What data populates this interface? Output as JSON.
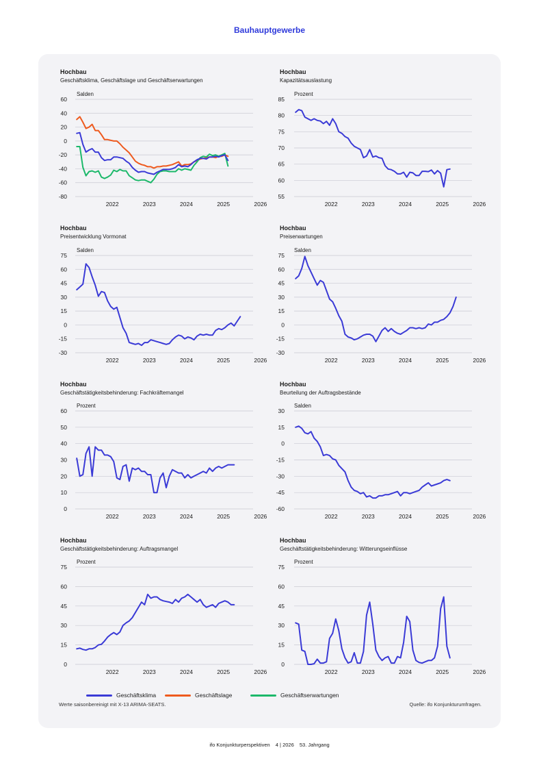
{
  "page": {
    "heading": "Bauhauptgewerbe",
    "note": "Werte saisonbereinigt mit X-13 ARIMA-SEATS.",
    "source": "Quelle: ifo Konjunkturumfragen.",
    "footer": {
      "publication": "ifo Konjunkturperspektiven",
      "issue": "4 | 2026",
      "volume": "53. Jahrgang"
    }
  },
  "colors": {
    "klima": "#3a3ad6",
    "lage": "#ee5a1e",
    "erwartungen": "#1cb86a",
    "grid": "#c9c9d2",
    "accent": "#2f3adb"
  },
  "legend": [
    {
      "label": "Geschäftsklima",
      "color": "#3a3ad6"
    },
    {
      "label": "Geschäftslage",
      "color": "#ee5a1e"
    },
    {
      "label": "Geschäftserwartungen",
      "color": "#1cb86a"
    }
  ],
  "chart_data": [
    {
      "type": "line",
      "title": "Hochbau",
      "subtitle": "Geschäftsklima, Geschäftslage und Geschäftserwartungen",
      "unit": "Salden",
      "ylim": [
        -80,
        60
      ],
      "yticks": [
        60,
        40,
        20,
        0,
        -20,
        -40,
        -60,
        -80
      ],
      "xlim": [
        2021.5,
        2026.3
      ],
      "xticks": [
        "2022",
        "2023",
        "2024",
        "2025",
        "2026"
      ],
      "x_start": 2021.54,
      "x_step": 0.0833,
      "series": [
        {
          "name": "Geschäftsklima",
          "color": "#3a3ad6",
          "values": [
            11,
            12,
            -5,
            -16,
            -13,
            -11,
            -16,
            -16,
            -24,
            -28,
            -27,
            -27,
            -23,
            -23,
            -24,
            -25,
            -29,
            -32,
            -38,
            -42,
            -45,
            -44,
            -44,
            -46,
            -47,
            -48,
            -45,
            -43,
            -41,
            -41,
            -41,
            -40,
            -38,
            -34,
            -37,
            -36,
            -37,
            -34,
            -30,
            -27,
            -25,
            -25,
            -26,
            -23,
            -23,
            -22,
            -23,
            -21,
            -20,
            -28
          ]
        },
        {
          "name": "Geschäftslage",
          "color": "#ee5a1e",
          "values": [
            31,
            35,
            27,
            18,
            20,
            24,
            15,
            15,
            9,
            2,
            2,
            1,
            0,
            0,
            -4,
            -9,
            -13,
            -17,
            -23,
            -29,
            -32,
            -34,
            -35,
            -37,
            -37,
            -39,
            -37,
            -37,
            -36,
            -36,
            -35,
            -34,
            -32,
            -30,
            -36,
            -34,
            -34,
            -33,
            -30,
            -28,
            -26,
            -25,
            -24,
            -23,
            -23,
            -24,
            -22,
            -22,
            -20,
            -22
          ]
        },
        {
          "name": "Geschäftserwartungen",
          "color": "#1cb86a",
          "values": [
            -8,
            -8,
            -38,
            -50,
            -44,
            -43,
            -45,
            -43,
            -52,
            -54,
            -52,
            -49,
            -42,
            -44,
            -41,
            -43,
            -43,
            -50,
            -53,
            -56,
            -57,
            -56,
            -56,
            -58,
            -60,
            -55,
            -48,
            -44,
            -43,
            -43,
            -44,
            -44,
            -44,
            -40,
            -42,
            -40,
            -41,
            -42,
            -35,
            -30,
            -24,
            -22,
            -23,
            -19,
            -21,
            -20,
            -22,
            -20,
            -18,
            -36
          ]
        }
      ]
    },
    {
      "type": "line",
      "title": "Hochbau",
      "subtitle": "Kapazitätsauslastung",
      "unit": "Prozent",
      "ylim": [
        55,
        85
      ],
      "yticks": [
        85,
        80,
        75,
        70,
        65,
        60,
        55
      ],
      "xlim": [
        2021.5,
        2026.3
      ],
      "xticks": [
        "2022",
        "2023",
        "2024",
        "2025",
        "2026"
      ],
      "x_start": 2021.54,
      "x_step": 0.0833,
      "series": [
        {
          "name": "Geschäftsklima",
          "color": "#3a3ad6",
          "values": [
            81,
            81.8,
            81.5,
            79.5,
            79,
            78.5,
            79,
            78.5,
            78.3,
            77.5,
            78.2,
            77,
            79,
            77.5,
            75,
            74.5,
            73.5,
            73,
            71.5,
            70.5,
            70,
            69.5,
            67,
            67.5,
            69.5,
            67.2,
            67.5,
            67,
            66.8,
            64.5,
            63.5,
            63.3,
            62.8,
            62,
            62,
            62.5,
            61,
            62.5,
            62.3,
            61.5,
            61.5,
            62.8,
            62.8,
            62.7,
            63.2,
            62,
            63,
            62.2,
            58,
            63.3,
            63.5
          ]
        }
      ]
    },
    {
      "type": "line",
      "title": "Hochbau",
      "subtitle": "Preisentwicklung Vormonat",
      "unit": "Salden",
      "ylim": [
        -30,
        75
      ],
      "yticks": [
        75,
        60,
        45,
        30,
        15,
        0,
        -15,
        -30
      ],
      "xlim": [
        2021.5,
        2026.3
      ],
      "xticks": [
        "2022",
        "2023",
        "2024",
        "2025",
        "2026"
      ],
      "x_start": 2021.54,
      "x_step": 0.0833,
      "series": [
        {
          "name": "Geschäftsklima",
          "color": "#3a3ad6",
          "values": [
            38,
            41,
            44,
            66,
            62,
            52,
            43,
            31,
            36,
            35,
            26,
            20,
            17,
            19,
            8,
            -3,
            -9,
            -19,
            -20,
            -21,
            -20,
            -22,
            -19,
            -19,
            -16,
            -17,
            -18,
            -19,
            -20,
            -21,
            -20,
            -16,
            -13,
            -11,
            -12,
            -15,
            -13,
            -14,
            -16,
            -12,
            -10,
            -11,
            -10,
            -11,
            -11,
            -6,
            -4,
            -5,
            -3,
            0,
            2,
            -1,
            4,
            9
          ]
        }
      ]
    },
    {
      "type": "line",
      "title": "Hochbau",
      "subtitle": "Preiserwartungen",
      "unit": "Salden",
      "ylim": [
        -30,
        75
      ],
      "yticks": [
        75,
        60,
        45,
        30,
        15,
        0,
        -15,
        -30
      ],
      "xlim": [
        2021.5,
        2026.3
      ],
      "xticks": [
        "2022",
        "2023",
        "2024",
        "2025",
        "2026"
      ],
      "x_start": 2021.54,
      "x_step": 0.0833,
      "series": [
        {
          "name": "Geschäftsklima",
          "color": "#3a3ad6",
          "values": [
            50,
            53,
            61,
            74,
            64,
            57,
            50,
            43,
            48,
            46,
            37,
            28,
            25,
            18,
            10,
            4,
            -10,
            -13,
            -14,
            -16,
            -15,
            -13,
            -11,
            -10,
            -10,
            -12,
            -18,
            -12,
            -6,
            -3,
            -7,
            -4,
            -7,
            -9,
            -10,
            -8,
            -6,
            -3,
            -3,
            -4,
            -3,
            -4,
            -3,
            1,
            0,
            3,
            3,
            5,
            6,
            9,
            13,
            20,
            30
          ]
        }
      ]
    },
    {
      "type": "line",
      "title": "Hochbau",
      "subtitle": "Geschäftstätigkeitsbehinderung: Fachkräftemangel",
      "unit": "Prozent",
      "ylim": [
        0,
        60
      ],
      "yticks": [
        60,
        50,
        40,
        30,
        20,
        10,
        0
      ],
      "xlim": [
        2021.5,
        2026.3
      ],
      "xticks": [
        "2022",
        "2023",
        "2024",
        "2025",
        "2026"
      ],
      "x_start": 2021.54,
      "x_step": 0.0833,
      "series": [
        {
          "name": "Geschäftsklima",
          "color": "#3a3ad6",
          "values": [
            31,
            20,
            21,
            34,
            38,
            20,
            38,
            36,
            36,
            33,
            33,
            32,
            29,
            19,
            18,
            26,
            27,
            17,
            25,
            24,
            25,
            23,
            23,
            21,
            21,
            10,
            10,
            19,
            22,
            13,
            20,
            24,
            23,
            22,
            22,
            19,
            21,
            19,
            20,
            21,
            22,
            23,
            22,
            25,
            23,
            25,
            26,
            25,
            26,
            27,
            27,
            27
          ]
        }
      ]
    },
    {
      "type": "line",
      "title": "Hochbau",
      "subtitle": "Beurteilung der Auftragsbestände",
      "unit": "Salden",
      "ylim": [
        -60,
        30
      ],
      "yticks": [
        30,
        15,
        0,
        -15,
        -30,
        -45,
        -60
      ],
      "xlim": [
        2021.5,
        2026.3
      ],
      "xticks": [
        "2022",
        "2023",
        "2024",
        "2025",
        "2026"
      ],
      "x_start": 2021.54,
      "x_step": 0.0833,
      "series": [
        {
          "name": "Geschäftsklima",
          "color": "#3a3ad6",
          "values": [
            15,
            16,
            14,
            10,
            9,
            11,
            5,
            2,
            -3,
            -11,
            -10,
            -11,
            -14,
            -15,
            -20,
            -23,
            -26,
            -34,
            -40,
            -43,
            -44,
            -46,
            -45,
            -49,
            -48,
            -50,
            -50,
            -48,
            -48,
            -47,
            -47,
            -46,
            -45,
            -44,
            -48,
            -45,
            -45,
            -46,
            -45,
            -44,
            -43,
            -40,
            -38,
            -36,
            -39,
            -38,
            -37,
            -36,
            -34,
            -33,
            -34
          ]
        }
      ]
    },
    {
      "type": "line",
      "title": "Hochbau",
      "subtitle": "Geschäftstätigkeitsbehinderung: Auftragsmangel",
      "unit": "Prozent",
      "ylim": [
        0,
        75
      ],
      "yticks": [
        75,
        60,
        45,
        30,
        15,
        0
      ],
      "xlim": [
        2021.5,
        2026.3
      ],
      "xticks": [
        "2022",
        "2023",
        "2024",
        "2025",
        "2026"
      ],
      "x_start": 2021.54,
      "x_step": 0.0833,
      "series": [
        {
          "name": "Geschäftsklima",
          "color": "#3a3ad6",
          "values": [
            12,
            12.5,
            11.5,
            11,
            12,
            12,
            13,
            15,
            15.5,
            18,
            21,
            23,
            24.5,
            23,
            25,
            30,
            32,
            33.5,
            36,
            40,
            44,
            48,
            46,
            54,
            51,
            52,
            52,
            50,
            49,
            48.5,
            48,
            47,
            50,
            48,
            51,
            52,
            54,
            52,
            50,
            48,
            50,
            46,
            44,
            45,
            46,
            44,
            47,
            48,
            49,
            48,
            46,
            46
          ]
        }
      ]
    },
    {
      "type": "line",
      "title": "Hochbau",
      "subtitle": "Geschäftstätigkeitsbehinderung: Witterungseinflüsse",
      "unit": "Prozent",
      "ylim": [
        0,
        75
      ],
      "yticks": [
        75,
        60,
        45,
        30,
        15,
        0
      ],
      "xlim": [
        2021.5,
        2026.3
      ],
      "xticks": [
        "2022",
        "2023",
        "2024",
        "2025",
        "2026"
      ],
      "x_start": 2021.54,
      "x_step": 0.0833,
      "series": [
        {
          "name": "Geschäftsklima",
          "color": "#3a3ad6",
          "values": [
            32,
            31,
            11,
            10,
            0,
            0,
            0.5,
            4,
            1,
            1,
            2,
            20,
            24,
            35,
            26,
            12,
            5,
            1,
            2,
            9,
            1,
            1,
            10,
            38,
            48,
            31,
            11,
            6,
            3,
            5,
            6,
            1,
            1,
            6,
            5,
            17,
            37,
            33,
            11,
            3,
            1.5,
            1,
            2,
            3,
            3,
            5,
            14,
            43,
            52,
            14,
            5
          ]
        }
      ]
    }
  ]
}
